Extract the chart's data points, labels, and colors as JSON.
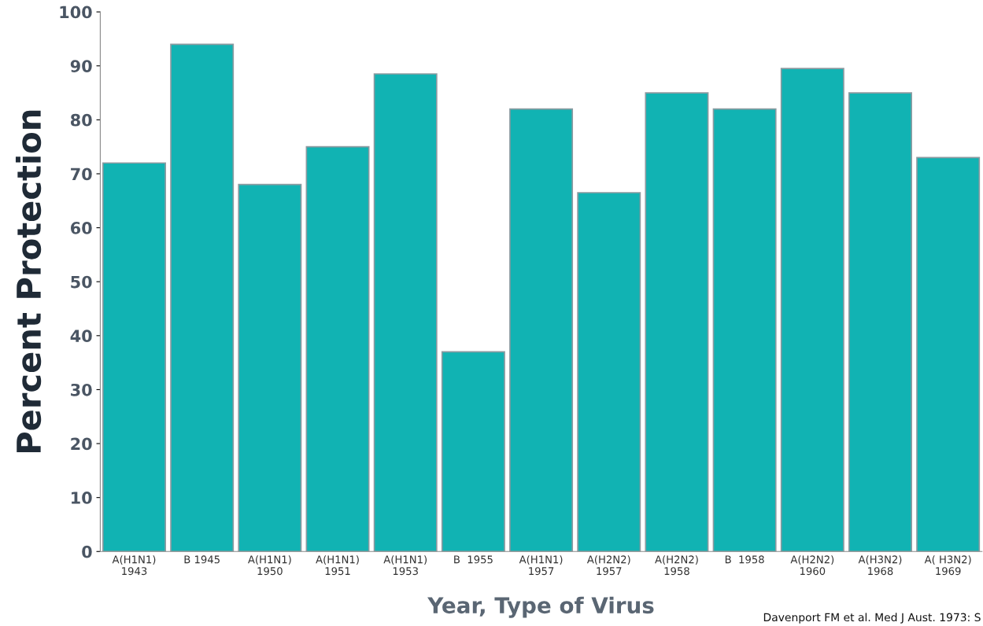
{
  "chart_data": {
    "type": "bar",
    "xlabel": "Year, Type of Virus",
    "ylabel": "Percent Protection",
    "categories": [
      "A(H1N1)\n1943",
      "B 1945",
      "A(H1N1)\n1950",
      "A(H1N1)\n1951",
      "A(H1N1)\n1953",
      "B  1955",
      "A(H1N1)\n1957",
      "A(H2N2)\n1957",
      "A(H2N2)\n1958",
      "B  1958",
      "A(H2N2)\n1960",
      "A(H3N2)\n1968",
      "A( H3N2)\n1969"
    ],
    "values": [
      72,
      94,
      68,
      75,
      88.5,
      37,
      82,
      66.5,
      85,
      82,
      89.5,
      85,
      73
    ],
    "color": "#11b3b3",
    "ylim": [
      0,
      100
    ],
    "yticks": [
      0,
      10,
      20,
      30,
      40,
      50,
      60,
      70,
      80,
      90,
      100
    ],
    "grid": false,
    "annotations": [
      "Davenport FM et al. Med J Aust. 1973: S"
    ]
  }
}
